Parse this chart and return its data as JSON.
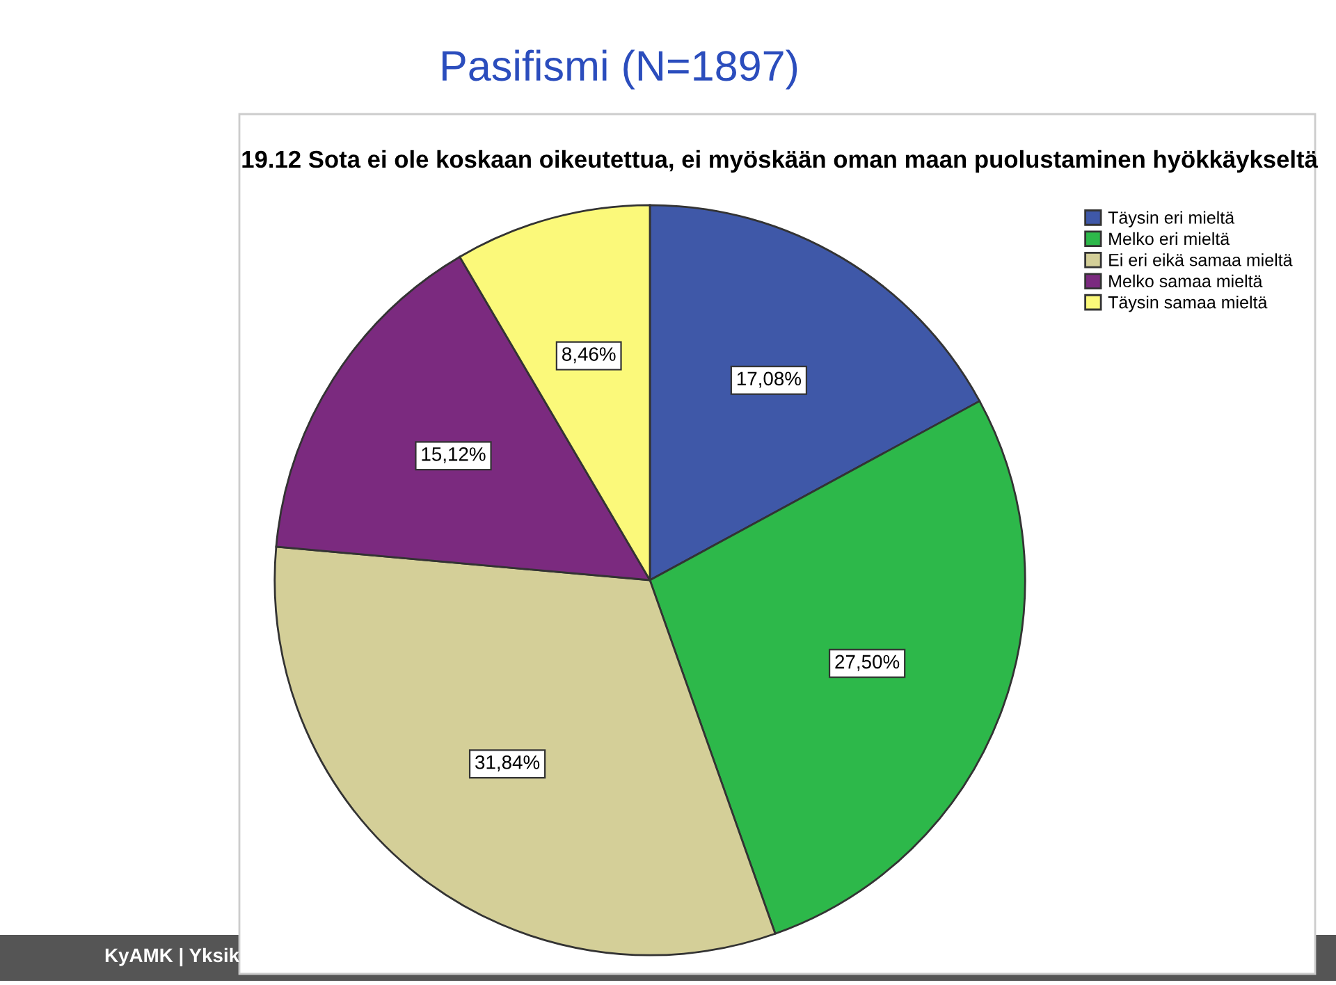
{
  "chart_data": {
    "type": "pie",
    "title": "Pasifismi (N=1897)",
    "subtitle": "19.12 Sota ei ole koskaan oikeutettua, ei myöskään oman maan puolustaminen hyökkäykseltä",
    "categories": [
      "Täysin eri mieltä",
      "Melko eri mieltä",
      "Ei eri eikä samaa mieltä",
      "Melko samaa mieltä",
      "Täysin samaa mieltä"
    ],
    "values": [
      17.08,
      27.5,
      31.84,
      15.12,
      8.46
    ],
    "colors": [
      "#3f58a8",
      "#2db84a",
      "#d4cf98",
      "#7b2a7f",
      "#fbf97a"
    ],
    "value_labels": [
      "17,08%",
      "27,50%",
      "31,84%",
      "15,12%",
      "8,46%"
    ],
    "legend": "top right",
    "annotations": [
      "KyAMK | Yksik"
    ]
  }
}
